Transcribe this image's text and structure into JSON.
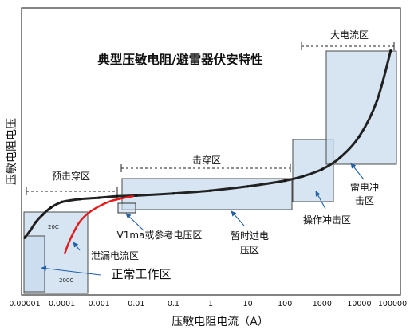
{
  "chart_data": {
    "type": "line",
    "title": "典型压敏电阻/避雷器伏安特性",
    "xlabel": "压敏电阻电流（A）",
    "ylabel": "压敏电阻电压",
    "x_scale": "log",
    "xlim": [
      1e-05,
      100000
    ],
    "x_tick_labels": [
      "0.00001",
      "0.0001",
      "0.001",
      "0.01",
      "0.1",
      "1",
      "10",
      "100",
      "1000",
      "10000",
      "100000"
    ],
    "grid": false,
    "series": [
      {
        "name": "20C",
        "color": "#222222",
        "x": [
          1e-05,
          1.4e-05,
          2e-05,
          3e-05,
          5e-05,
          0.0001,
          0.0003,
          0.001,
          0.003,
          0.01,
          0.1,
          1,
          10,
          100,
          300,
          1000,
          3000,
          10000,
          30000,
          70000
        ],
        "y": [
          0.39,
          0.44,
          0.5,
          0.55,
          0.6,
          0.64,
          0.66,
          0.67,
          0.68,
          0.685,
          0.7,
          0.72,
          0.75,
          0.79,
          0.82,
          0.87,
          0.95,
          1.1,
          1.35,
          1.7
        ]
      },
      {
        "name": "200C",
        "color": "#e31b1b",
        "x": [
          0.00012,
          0.00015,
          0.0002,
          0.0003,
          0.0005,
          0.001,
          0.002,
          0.004,
          0.008
        ],
        "y": [
          0.28,
          0.35,
          0.42,
          0.5,
          0.56,
          0.61,
          0.645,
          0.665,
          0.68
        ]
      }
    ],
    "regions": [
      {
        "name": "预击穿区",
        "x": [
          1e-05,
          0.004
        ]
      },
      {
        "name": "击穿区",
        "x": [
          0.004,
          150
        ]
      },
      {
        "name": "大电流区",
        "x": [
          150,
          100000
        ]
      }
    ],
    "annotations": [
      "V1ma或参考电压区",
      "暂时过电压区",
      "操作冲击区",
      "雷电冲击区",
      "泄漏电流区",
      "正常工作区"
    ]
  },
  "labels": {
    "pre_breakdown": "预击穿区",
    "breakdown": "击穿区",
    "high_current": "大电流区",
    "v1ma": "V1ma或参考电压区",
    "tov_line1": "暂时过电",
    "tov_line2": "压区",
    "switching": "操作冲击区",
    "lightning_line1": "雷电冲",
    "lightning_line2": "击区",
    "leakage": "泄漏电流区",
    "normal": "正常工作区",
    "tag_20c": "20C",
    "tag_200c": "200C"
  },
  "colors": {
    "box_fill": "#c9dcee",
    "box_stroke": "#4a4a4a",
    "curve_main": "#222222",
    "curve_hot": "#e31b1b",
    "arrow": "#1f5fa8"
  }
}
